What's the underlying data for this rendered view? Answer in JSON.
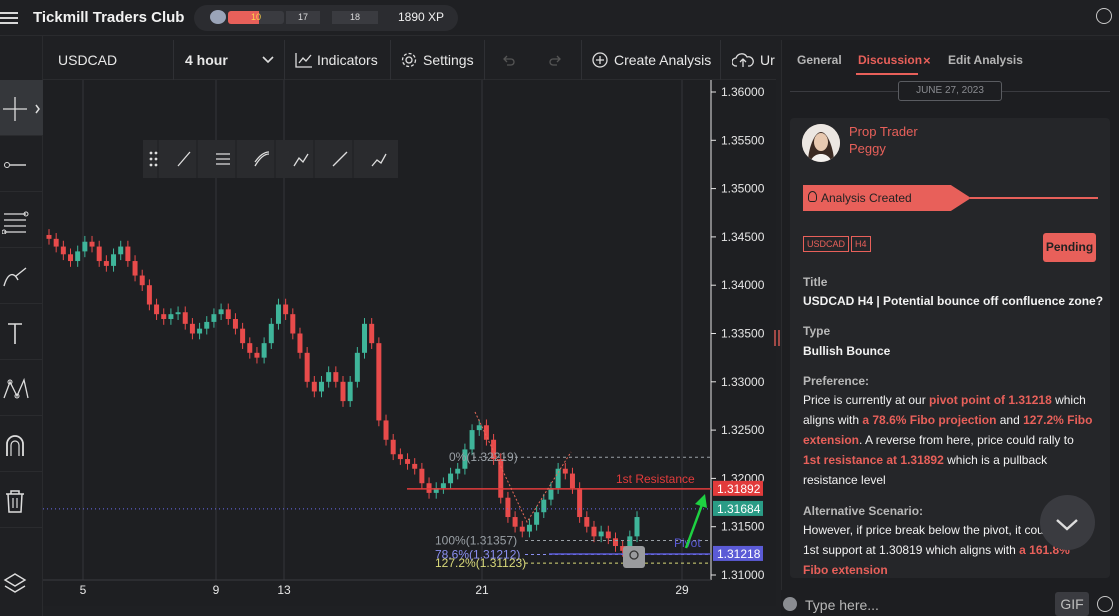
{
  "header": {
    "title": "Tickmill Traders Club",
    "xp_level_progress": "10",
    "xp_cell_1": "17",
    "xp_cell_2": "18",
    "xp_total": "1890 XP",
    "xp_progress_fraction": 0.55
  },
  "chart_toolbar": {
    "symbol": "USDCAD",
    "interval": "4 hour",
    "indicators_label": "Indicators",
    "settings_label": "Settings",
    "create_analysis_label": "Create Analysis",
    "upload_label": "Ur"
  },
  "left_toolbar": {
    "icons": [
      "crosshair-icon",
      "line-tool-icon",
      "fib-tool-icon",
      "brush-tool-icon",
      "text-tool-icon",
      "pattern-tool-icon",
      "magnet-icon",
      "trash-icon",
      "layers-icon"
    ]
  },
  "chart_data": {
    "type": "candlestick",
    "symbol": "USDCAD",
    "interval": "4 hour",
    "ylim": [
      1.31,
      1.36
    ],
    "y_ticks": [
      "1.36000",
      "1.35500",
      "1.35000",
      "1.34500",
      "1.34000",
      "1.33500",
      "1.33000",
      "1.32500",
      "1.32000",
      "1.31500",
      "1.31000"
    ],
    "x_ticks": [
      "5",
      "9",
      "13",
      "21",
      "29"
    ],
    "close_path": [
      1.3448,
      1.344,
      1.3432,
      1.3425,
      1.3435,
      1.3445,
      1.344,
      1.3425,
      1.342,
      1.3432,
      1.344,
      1.3425,
      1.341,
      1.34,
      1.338,
      1.337,
      1.3365,
      1.337,
      1.3372,
      1.336,
      1.335,
      1.3355,
      1.3362,
      1.337,
      1.3375,
      1.3365,
      1.3355,
      1.334,
      1.333,
      1.3325,
      1.334,
      1.336,
      1.338,
      1.337,
      1.335,
      1.333,
      1.33,
      1.329,
      1.33,
      1.331,
      1.33,
      1.328,
      1.33,
      1.333,
      1.336,
      1.334,
      1.326,
      1.324,
      1.3225,
      1.322,
      1.3215,
      1.321,
      1.3195,
      1.3185,
      1.319,
      1.3195,
      1.3205,
      1.321,
      1.323,
      1.325,
      1.3255,
      1.324,
      1.322,
      1.318,
      1.316,
      1.315,
      1.3145,
      1.3152,
      1.3165,
      1.3178,
      1.319,
      1.321,
      1.3205,
      1.319,
      1.316,
      1.315,
      1.314,
      1.3145,
      1.3138,
      1.313,
      1.3125,
      1.314,
      1.316
    ],
    "levels": [
      {
        "label": "0%(1.32219)",
        "value": 1.32219
      },
      {
        "label": "100%(1.31357)",
        "value": 1.31357
      },
      {
        "label": "78.6%(1.31212)",
        "value": 1.31212
      },
      {
        "label": "127.2%(1.31123)",
        "value": 1.31123
      }
    ],
    "resistance": {
      "label": "1st Resistance",
      "value": 1.31892,
      "tag": "1.31892"
    },
    "pivot": {
      "label": "Pivot",
      "value": 1.31218,
      "tag": "1.31218"
    },
    "current_price": {
      "value": 1.31684,
      "tag": "1.31684"
    },
    "colors": {
      "up": "#3fb59a",
      "down": "#e84b4b",
      "resistance": "#e23b3b",
      "pivot": "#5b5bd6",
      "current": "#2a9c86",
      "fib": "#9aa0a6"
    }
  },
  "drawing_toolbar": {
    "icons": [
      "drag-handle-icon",
      "trend-line-icon",
      "fib-retracement-icon",
      "fib-channel-icon",
      "path-icon",
      "ray-icon",
      "measure-icon"
    ]
  },
  "right_panel": {
    "tabs": [
      "General",
      "Discussion",
      "Edit Analysis"
    ],
    "tab_close_glyph": "×",
    "date": "JUNE 27, 2023",
    "author_role": "Prop Trader",
    "author_name": "Peggy",
    "banner": "Analysis Created",
    "tags": [
      "USDCAD",
      "H4"
    ],
    "status": "Pending",
    "title_label": "Title",
    "title_value": "USDCAD H4 | Potential bounce off confluence zone?",
    "type_label": "Type",
    "type_value": "Bullish Bounce",
    "preference_label": "Preference:",
    "pref_1": "Price is currently at our ",
    "pref_2": "pivot point of 1.31218",
    "pref_3": " which aligns with ",
    "pref_4": "a 78.6% Fibo projection",
    "pref_5": " and ",
    "pref_6": "127.2% Fibo extension",
    "pref_7": ". A reverse from here, price could rally to ",
    "pref_8": "1st resistance at 1.31892",
    "pref_9": " which is a pullback resistance level",
    "alt_label": "Alternative Scenario:",
    "alt_1": "However, if price break below the pivot, it cou",
    "alt_2": "1st support at 1.30819 which aligns with ",
    "alt_3": "a 161.8%",
    "alt_4": "Fibo extension",
    "reply_placeholder": "Type here...",
    "gif_label": "GIF"
  }
}
